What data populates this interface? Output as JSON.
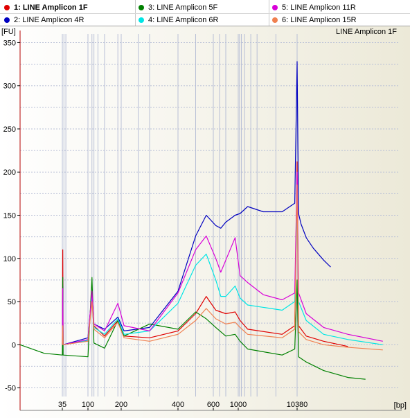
{
  "legend": {
    "items": [
      {
        "label": "1: LINE Amplicon 1F",
        "color": "#e00000",
        "active": true
      },
      {
        "label": "2: LINE Amplicon 4R",
        "color": "#0000c0",
        "active": false
      },
      {
        "label": "3: LINE Amplicon 5F",
        "color": "#008000",
        "active": false
      },
      {
        "label": "4: LINE Amplicon 6R",
        "color": "#00e5e5",
        "active": false
      },
      {
        "label": "5: LINE Amplicon 11R",
        "color": "#d800d8",
        "active": false
      },
      {
        "label": "6: LINE Amplicon 15R",
        "color": "#f08050",
        "active": false
      }
    ]
  },
  "chart_data": {
    "type": "line",
    "title": "LINE Amplicon 1F",
    "ylabel": "[FU]",
    "xlabel": "[bp]",
    "ylim": [
      -60,
      360
    ],
    "yticks": [
      -50,
      0,
      50,
      100,
      150,
      200,
      250,
      300,
      350
    ],
    "xtick_labels": [
      "35",
      "100",
      "200",
      "400",
      "600",
      "1000",
      "10380"
    ],
    "grid": true,
    "series": [
      {
        "name": "1: LINE Amplicon 1F",
        "color": "#e00000",
        "points": [
          [
            35,
            0
          ],
          [
            36,
            110
          ],
          [
            37,
            0
          ],
          [
            100,
            5
          ],
          [
            112,
            58
          ],
          [
            118,
            22
          ],
          [
            150,
            10
          ],
          [
            190,
            28
          ],
          [
            210,
            10
          ],
          [
            300,
            8
          ],
          [
            400,
            16
          ],
          [
            500,
            36
          ],
          [
            560,
            56
          ],
          [
            640,
            40
          ],
          [
            800,
            36
          ],
          [
            950,
            38
          ],
          [
            1300,
            28
          ],
          [
            2500,
            18
          ],
          [
            8000,
            12
          ],
          [
            10000,
            22
          ],
          [
            10380,
            212
          ],
          [
            10800,
            22
          ],
          [
            13000,
            10
          ],
          [
            18000,
            4
          ],
          [
            25000,
            -2
          ]
        ]
      },
      {
        "name": "2: LINE Amplicon 4R",
        "color": "#0000c0",
        "points": [
          [
            35,
            0
          ],
          [
            36,
            68
          ],
          [
            37,
            0
          ],
          [
            100,
            8
          ],
          [
            112,
            60
          ],
          [
            118,
            24
          ],
          [
            150,
            18
          ],
          [
            190,
            32
          ],
          [
            210,
            16
          ],
          [
            300,
            20
          ],
          [
            400,
            62
          ],
          [
            500,
            126
          ],
          [
            560,
            150
          ],
          [
            640,
            138
          ],
          [
            720,
            135
          ],
          [
            800,
            142
          ],
          [
            950,
            150
          ],
          [
            1300,
            152
          ],
          [
            2500,
            160
          ],
          [
            5000,
            154
          ],
          [
            8000,
            154
          ],
          [
            10000,
            164
          ],
          [
            10380,
            328
          ],
          [
            10800,
            152
          ],
          [
            11500,
            140
          ],
          [
            13000,
            124
          ],
          [
            15000,
            112
          ],
          [
            18000,
            98
          ],
          [
            20000,
            90
          ]
        ]
      },
      {
        "name": "3: LINE Amplicon 5F",
        "color": "#008000",
        "points": [
          [
            0,
            0
          ],
          [
            20,
            -10
          ],
          [
            35,
            -12
          ],
          [
            36,
            78
          ],
          [
            37,
            -12
          ],
          [
            100,
            -14
          ],
          [
            112,
            78
          ],
          [
            118,
            2
          ],
          [
            150,
            -4
          ],
          [
            190,
            28
          ],
          [
            210,
            10
          ],
          [
            300,
            24
          ],
          [
            400,
            18
          ],
          [
            500,
            38
          ],
          [
            560,
            30
          ],
          [
            640,
            20
          ],
          [
            800,
            10
          ],
          [
            950,
            12
          ],
          [
            1300,
            4
          ],
          [
            2500,
            -5
          ],
          [
            8000,
            -12
          ],
          [
            10000,
            -5
          ],
          [
            10380,
            75
          ],
          [
            10800,
            -14
          ],
          [
            13000,
            -20
          ],
          [
            18000,
            -30
          ],
          [
            25000,
            -38
          ],
          [
            30000,
            -40
          ]
        ]
      },
      {
        "name": "4: LINE Amplicon 6R",
        "color": "#00e5e5",
        "points": [
          [
            35,
            0
          ],
          [
            36,
            20
          ],
          [
            37,
            0
          ],
          [
            100,
            5
          ],
          [
            112,
            55
          ],
          [
            118,
            20
          ],
          [
            150,
            12
          ],
          [
            190,
            30
          ],
          [
            210,
            12
          ],
          [
            300,
            16
          ],
          [
            400,
            48
          ],
          [
            500,
            92
          ],
          [
            560,
            105
          ],
          [
            640,
            75
          ],
          [
            720,
            56
          ],
          [
            800,
            56
          ],
          [
            950,
            68
          ],
          [
            1300,
            54
          ],
          [
            2500,
            46
          ],
          [
            8000,
            40
          ],
          [
            10000,
            50
          ],
          [
            10380,
            160
          ],
          [
            10800,
            50
          ],
          [
            13000,
            28
          ],
          [
            18000,
            12
          ],
          [
            25000,
            6
          ],
          [
            35000,
            0
          ]
        ]
      },
      {
        "name": "5: LINE Amplicon 11R",
        "color": "#d800d8",
        "points": [
          [
            35,
            0
          ],
          [
            36,
            65
          ],
          [
            37,
            0
          ],
          [
            100,
            6
          ],
          [
            112,
            62
          ],
          [
            118,
            24
          ],
          [
            150,
            16
          ],
          [
            190,
            48
          ],
          [
            210,
            22
          ],
          [
            300,
            16
          ],
          [
            400,
            60
          ],
          [
            500,
            110
          ],
          [
            560,
            126
          ],
          [
            640,
            100
          ],
          [
            720,
            84
          ],
          [
            800,
            98
          ],
          [
            950,
            124
          ],
          [
            1300,
            80
          ],
          [
            2500,
            72
          ],
          [
            5000,
            58
          ],
          [
            8000,
            52
          ],
          [
            10000,
            60
          ],
          [
            10380,
            200
          ],
          [
            10800,
            60
          ],
          [
            13000,
            36
          ],
          [
            18000,
            20
          ],
          [
            25000,
            12
          ],
          [
            35000,
            4
          ]
        ]
      },
      {
        "name": "6: LINE Amplicon 15R",
        "color": "#f08050",
        "points": [
          [
            35,
            0
          ],
          [
            36,
            22
          ],
          [
            37,
            0
          ],
          [
            100,
            4
          ],
          [
            112,
            50
          ],
          [
            118,
            18
          ],
          [
            150,
            8
          ],
          [
            190,
            26
          ],
          [
            210,
            8
          ],
          [
            300,
            4
          ],
          [
            400,
            12
          ],
          [
            500,
            28
          ],
          [
            560,
            42
          ],
          [
            640,
            30
          ],
          [
            800,
            24
          ],
          [
            950,
            26
          ],
          [
            1300,
            20
          ],
          [
            2500,
            12
          ],
          [
            8000,
            8
          ],
          [
            10000,
            18
          ],
          [
            10380,
            185
          ],
          [
            10800,
            15
          ],
          [
            13000,
            6
          ],
          [
            18000,
            0
          ],
          [
            25000,
            -3
          ],
          [
            35000,
            -6
          ]
        ]
      }
    ]
  }
}
